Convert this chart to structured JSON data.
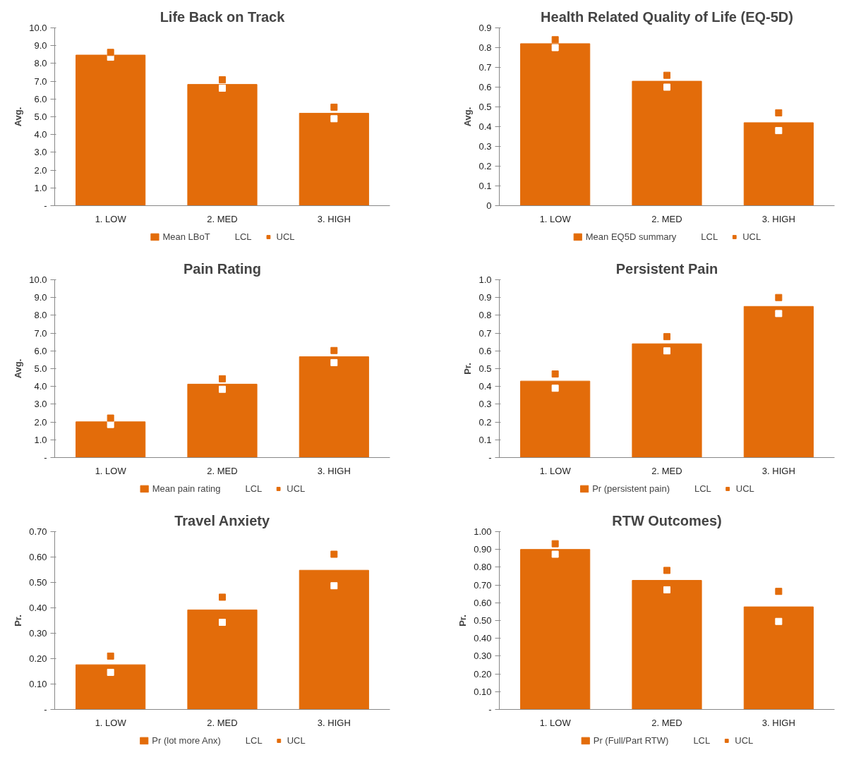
{
  "chart_data": [
    {
      "type": "bar",
      "title": "Life Back on Track",
      "ylabel": "Avg.",
      "categories": [
        "1. LOW",
        "2. MED",
        "3. HIGH"
      ],
      "legend": "bottom",
      "grid": false,
      "ylim": [
        0,
        10
      ],
      "yticks": [
        {
          "value": 0,
          "label": "-"
        },
        {
          "value": 1,
          "label": "1.0"
        },
        {
          "value": 2,
          "label": "2.0"
        },
        {
          "value": 3,
          "label": "3.0"
        },
        {
          "value": 4,
          "label": "4.0"
        },
        {
          "value": 5,
          "label": "5.0"
        },
        {
          "value": 6,
          "label": "6.0"
        },
        {
          "value": 7,
          "label": "7.0"
        },
        {
          "value": 8,
          "label": "8.0"
        },
        {
          "value": 9,
          "label": "9.0"
        },
        {
          "value": 10,
          "label": "10.0"
        }
      ],
      "series": [
        {
          "name": "Mean LBoT",
          "color": "#e36c0a",
          "values": [
            8.47,
            6.82,
            5.2
          ]
        },
        {
          "name": "LCL",
          "type": "scatter",
          "marker": "square",
          "color": "#ffffff",
          "values": [
            8.35,
            6.61,
            4.89
          ]
        },
        {
          "name": "UCL",
          "type": "scatter",
          "marker": "square",
          "color": "#e36c0a",
          "values": [
            8.62,
            7.08,
            5.54
          ]
        }
      ]
    },
    {
      "type": "bar",
      "title": "Health Related Quality of Life (EQ-5D)",
      "ylabel": "Avg.",
      "categories": [
        "1. LOW",
        "2. MED",
        "3. HIGH"
      ],
      "legend": "bottom",
      "grid": false,
      "ylim": [
        0,
        0.9
      ],
      "yticks": [
        0,
        0.1,
        0.2,
        0.3,
        0.4,
        0.5,
        0.6,
        0.7,
        0.8,
        0.9
      ],
      "series": [
        {
          "name": "Mean EQ5D summary",
          "color": "#e36c0a",
          "values": [
            0.82,
            0.63,
            0.42
          ]
        },
        {
          "name": "LCL",
          "type": "scatter",
          "marker": "square",
          "color": "#ffffff",
          "values": [
            0.8,
            0.6,
            0.38
          ]
        },
        {
          "name": "UCL",
          "type": "scatter",
          "marker": "square",
          "color": "#e36c0a",
          "values": [
            0.84,
            0.66,
            0.47
          ]
        }
      ]
    },
    {
      "type": "bar",
      "title": "Pain Rating",
      "ylabel": "Avg.",
      "categories": [
        "1. LOW",
        "2. MED",
        "3. HIGH"
      ],
      "legend": "bottom",
      "grid": false,
      "ylim": [
        0,
        10
      ],
      "yticks": [
        {
          "value": 0,
          "label": "-"
        },
        {
          "value": 1,
          "label": "1.0"
        },
        {
          "value": 2,
          "label": "2.0"
        },
        {
          "value": 3,
          "label": "3.0"
        },
        {
          "value": 4,
          "label": "4.0"
        },
        {
          "value": 5,
          "label": "5.0"
        },
        {
          "value": 6,
          "label": "6.0"
        },
        {
          "value": 7,
          "label": "7.0"
        },
        {
          "value": 8,
          "label": "8.0"
        },
        {
          "value": 9,
          "label": "9.0"
        },
        {
          "value": 10,
          "label": "10.0"
        }
      ],
      "series": [
        {
          "name": "Mean pain rating",
          "color": "#e36c0a",
          "values": [
            2.01,
            4.13,
            5.67
          ]
        },
        {
          "name": "LCL",
          "type": "scatter",
          "marker": "square",
          "color": "#ffffff",
          "values": [
            1.86,
            3.84,
            5.34
          ]
        },
        {
          "name": "UCL",
          "type": "scatter",
          "marker": "square",
          "color": "#e36c0a",
          "values": [
            2.22,
            4.43,
            6.02
          ]
        }
      ]
    },
    {
      "type": "bar",
      "title": "Persistent Pain",
      "ylabel": "Pr.",
      "categories": [
        "1. LOW",
        "2. MED",
        "3. HIGH"
      ],
      "legend": "bottom",
      "grid": false,
      "ylim": [
        0,
        1
      ],
      "yticks": [
        {
          "value": 0,
          "label": "-"
        },
        0.1,
        0.2,
        0.3,
        0.4,
        0.5,
        0.6,
        0.7,
        0.8,
        0.9,
        {
          "value": 1,
          "label": "1.0"
        }
      ],
      "series": [
        {
          "name": "Pr (persistent pain)",
          "color": "#e36c0a",
          "values": [
            0.43,
            0.64,
            0.85
          ]
        },
        {
          "name": "LCL",
          "type": "scatter",
          "marker": "square",
          "color": "#ffffff",
          "values": [
            0.39,
            0.6,
            0.81
          ]
        },
        {
          "name": "UCL",
          "type": "scatter",
          "marker": "square",
          "color": "#e36c0a",
          "values": [
            0.47,
            0.68,
            0.9
          ]
        }
      ]
    },
    {
      "type": "bar",
      "title": "Travel Anxiety",
      "ylabel": "Pr.",
      "categories": [
        "1. LOW",
        "2. MED",
        "3. HIGH"
      ],
      "legend": "bottom",
      "grid": false,
      "ylim": [
        0,
        0.7
      ],
      "yticks": [
        {
          "value": 0,
          "label": "-"
        },
        {
          "value": 0.1,
          "label": "0.10"
        },
        {
          "value": 0.2,
          "label": "0.20"
        },
        {
          "value": 0.3,
          "label": "0.30"
        },
        {
          "value": 0.4,
          "label": "0.40"
        },
        {
          "value": 0.5,
          "label": "0.50"
        },
        {
          "value": 0.6,
          "label": "0.60"
        },
        {
          "value": 0.7,
          "label": "0.70"
        }
      ],
      "series": [
        {
          "name": "Pr (lot more Anx)",
          "color": "#e36c0a",
          "values": [
            0.176,
            0.392,
            0.548
          ]
        },
        {
          "name": "LCL",
          "type": "scatter",
          "marker": "square",
          "color": "#ffffff",
          "values": [
            0.146,
            0.343,
            0.487
          ]
        },
        {
          "name": "UCL",
          "type": "scatter",
          "marker": "square",
          "color": "#e36c0a",
          "values": [
            0.21,
            0.442,
            0.611
          ]
        }
      ]
    },
    {
      "type": "bar",
      "title": "RTW Outcomes)",
      "ylabel": "Pr.",
      "categories": [
        "1. LOW",
        "2. MED",
        "3. HIGH"
      ],
      "legend": "bottom",
      "grid": false,
      "ylim": [
        0,
        1
      ],
      "yticks": [
        {
          "value": 0,
          "label": "-"
        },
        {
          "value": 0.1,
          "label": "0.10"
        },
        {
          "value": 0.2,
          "label": "0.20"
        },
        {
          "value": 0.3,
          "label": "0.30"
        },
        {
          "value": 0.4,
          "label": "0.40"
        },
        {
          "value": 0.5,
          "label": "0.50"
        },
        {
          "value": 0.6,
          "label": "0.60"
        },
        {
          "value": 0.7,
          "label": "0.70"
        },
        {
          "value": 0.8,
          "label": "0.80"
        },
        {
          "value": 0.9,
          "label": "0.90"
        },
        {
          "value": 1,
          "label": "1.00"
        }
      ],
      "series": [
        {
          "name": "Pr (Full/Part RTW)",
          "color": "#e36c0a",
          "values": [
            0.9,
            0.726,
            0.577
          ]
        },
        {
          "name": "LCL",
          "type": "scatter",
          "marker": "square",
          "color": "#ffffff",
          "values": [
            0.873,
            0.673,
            0.495
          ]
        },
        {
          "name": "UCL",
          "type": "scatter",
          "marker": "square",
          "color": "#e36c0a",
          "values": [
            0.932,
            0.782,
            0.664
          ]
        }
      ]
    }
  ]
}
